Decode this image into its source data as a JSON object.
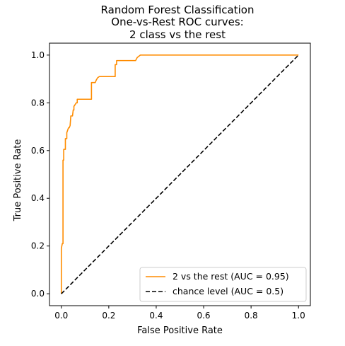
{
  "chart_data": {
    "type": "line",
    "title": [
      "Random Forest Classification",
      "One-vs-Rest ROC curves:",
      "2 class vs the rest"
    ],
    "xlabel": "False Positive Rate",
    "ylabel": "True Positive Rate",
    "xlim": [
      -0.05,
      1.05
    ],
    "ylim": [
      -0.05,
      1.05
    ],
    "xticks": [
      0.0,
      0.2,
      0.4,
      0.6,
      0.8,
      1.0
    ],
    "yticks": [
      0.0,
      0.2,
      0.4,
      0.6,
      0.8,
      1.0
    ],
    "tick_format": 1,
    "grid": false,
    "legend_position": "lower-right",
    "series": [
      {
        "name": "2 vs the rest (AUC = 0.95)",
        "color": "#ff8c00",
        "style": "solid",
        "x": [
          0.0,
          0.0,
          0.004,
          0.007,
          0.007,
          0.01,
          0.01,
          0.017,
          0.017,
          0.023,
          0.023,
          0.03,
          0.033,
          0.037,
          0.04,
          0.047,
          0.05,
          0.053,
          0.053,
          0.063,
          0.067,
          0.067,
          0.077,
          0.08,
          0.083,
          0.087,
          0.09,
          0.1,
          0.113,
          0.123,
          0.127,
          0.127,
          0.143,
          0.147,
          0.153,
          0.16,
          0.17,
          0.193,
          0.227,
          0.227,
          0.233,
          0.233,
          0.25,
          0.3,
          0.313,
          0.32,
          0.333,
          0.5,
          0.8,
          1.0
        ],
        "y": [
          0.0,
          0.19,
          0.21,
          0.21,
          0.56,
          0.56,
          0.605,
          0.605,
          0.65,
          0.65,
          0.675,
          0.695,
          0.695,
          0.705,
          0.745,
          0.745,
          0.77,
          0.77,
          0.785,
          0.8,
          0.8,
          0.815,
          0.815,
          0.815,
          0.815,
          0.815,
          0.815,
          0.815,
          0.815,
          0.815,
          0.815,
          0.885,
          0.885,
          0.895,
          0.905,
          0.91,
          0.91,
          0.91,
          0.91,
          0.96,
          0.96,
          0.977,
          0.977,
          0.977,
          0.977,
          0.99,
          1.0,
          1.0,
          1.0,
          1.0
        ]
      },
      {
        "name": "chance level (AUC = 0.5)",
        "color": "#000000",
        "style": "dashed",
        "x": [
          0.0,
          1.0
        ],
        "y": [
          0.0,
          1.0
        ]
      }
    ]
  }
}
